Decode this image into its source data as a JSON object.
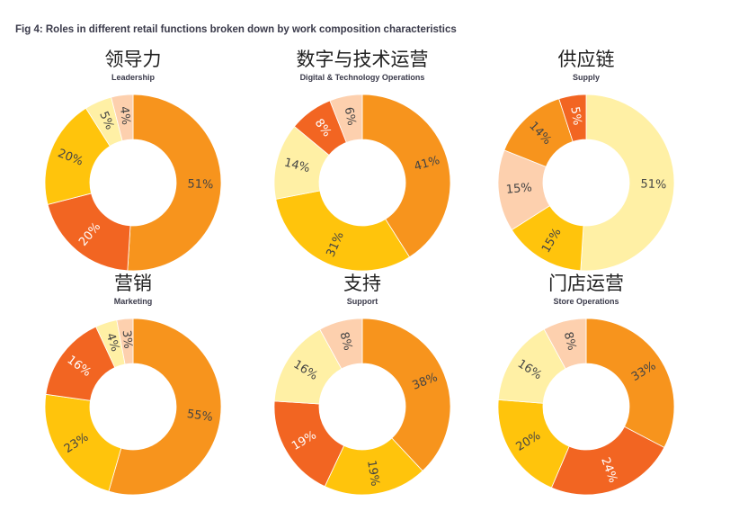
{
  "figure_title": "Fig 4: Roles in different retail functions broken down by work composition characteristics",
  "colors": {
    "orange": "#F7941D",
    "red": "#F26522",
    "yellow": "#FFC40C",
    "light_yellow": "#FFF0A5",
    "peach": "#FDD0AE"
  },
  "chart_data": [
    {
      "type": "pie",
      "title": "领导力",
      "subtitle": "Leadership",
      "slices": [
        {
          "value": 51,
          "label": "51%",
          "color": "orange"
        },
        {
          "value": 20,
          "label": "20%",
          "color": "red"
        },
        {
          "value": 20,
          "label": "20%",
          "color": "yellow"
        },
        {
          "value": 5,
          "label": "5%",
          "color": "light_yellow"
        },
        {
          "value": 4,
          "label": "4%",
          "color": "peach"
        }
      ]
    },
    {
      "type": "pie",
      "title": "数字与技术运营",
      "subtitle": "Digital & Technology Operations",
      "slices": [
        {
          "value": 41,
          "label": "41%",
          "color": "orange"
        },
        {
          "value": 31,
          "label": "31%",
          "color": "yellow"
        },
        {
          "value": 14,
          "label": "14%",
          "color": "light_yellow"
        },
        {
          "value": 8,
          "label": "8%",
          "color": "red"
        },
        {
          "value": 6,
          "label": "6%",
          "color": "peach"
        }
      ]
    },
    {
      "type": "pie",
      "title": "供应链",
      "subtitle": "Supply",
      "slices": [
        {
          "value": 51,
          "label": "51%",
          "color": "light_yellow"
        },
        {
          "value": 15,
          "label": "15%",
          "color": "yellow"
        },
        {
          "value": 15,
          "label": "15%",
          "color": "peach"
        },
        {
          "value": 14,
          "label": "14%",
          "color": "orange"
        },
        {
          "value": 5,
          "label": "5%",
          "color": "red"
        }
      ]
    },
    {
      "type": "pie",
      "title": "营销",
      "subtitle": "Marketing",
      "slices": [
        {
          "value": 55,
          "label": "55%",
          "color": "orange"
        },
        {
          "value": 23,
          "label": "23%",
          "color": "yellow"
        },
        {
          "value": 16,
          "label": "16%",
          "color": "red"
        },
        {
          "value": 4,
          "label": "4%",
          "color": "light_yellow"
        },
        {
          "value": 3,
          "label": "3%",
          "color": "peach"
        }
      ]
    },
    {
      "type": "pie",
      "title": "支持",
      "subtitle": "Support",
      "slices": [
        {
          "value": 38,
          "label": "38%",
          "color": "orange"
        },
        {
          "value": 19,
          "label": "19%",
          "color": "yellow"
        },
        {
          "value": 19,
          "label": "19%",
          "color": "red"
        },
        {
          "value": 16,
          "label": "16%",
          "color": "light_yellow"
        },
        {
          "value": 8,
          "label": "8%",
          "color": "peach"
        }
      ]
    },
    {
      "type": "pie",
      "title": "门店运营",
      "subtitle": "Store Operations",
      "slices": [
        {
          "value": 33,
          "label": "33%",
          "color": "orange"
        },
        {
          "value": 24,
          "label": "24%",
          "color": "red"
        },
        {
          "value": 20,
          "label": "20%",
          "color": "yellow"
        },
        {
          "value": 16,
          "label": "16%",
          "color": "light_yellow"
        },
        {
          "value": 8,
          "label": "8%",
          "color": "peach"
        }
      ]
    }
  ]
}
